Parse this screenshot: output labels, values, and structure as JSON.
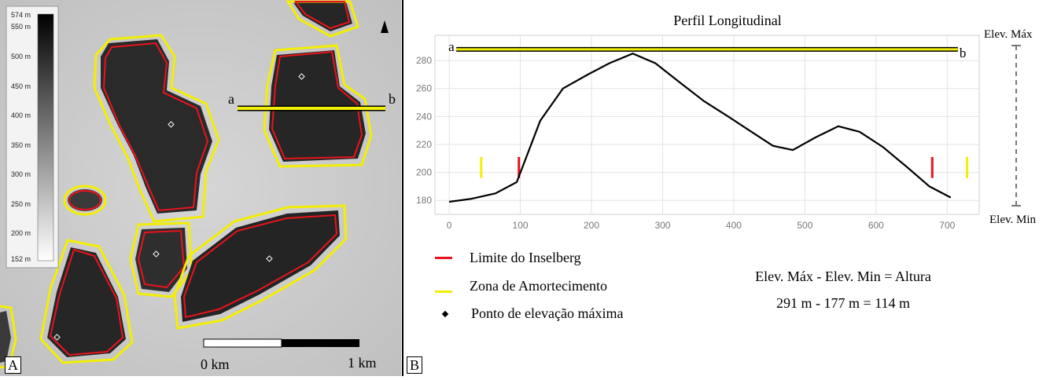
{
  "panel_a": {
    "letter": "A",
    "colorbar": {
      "labels": [
        "574 m",
        "550 m",
        "500 m",
        "450 m",
        "400 m",
        "350 m",
        "300 m",
        "250 m",
        "200 m",
        "152 m"
      ]
    },
    "scale": {
      "start_label": "0 km",
      "end_label": "1 km"
    },
    "transect": {
      "start": "a",
      "end": "b"
    },
    "colors": {
      "inselberg_limit": "#e8141c",
      "buffer_zone": "#f2ee05"
    }
  },
  "panel_b": {
    "letter": "B",
    "title": "Perfil Longitudinal",
    "chart_data": {
      "type": "line",
      "title": "Perfil Longitudinal",
      "xlabel": "",
      "ylabel": "",
      "xlim": [
        -20,
        745
      ],
      "ylim": [
        170,
        298
      ],
      "xticks": [
        0,
        100,
        200,
        300,
        400,
        500,
        600,
        700
      ],
      "yticks": [
        180,
        200,
        220,
        240,
        260,
        280
      ],
      "grid": true,
      "series": [
        {
          "x": [
            0,
            30,
            65,
            95,
            128,
            160,
            195,
            225,
            258,
            290,
            325,
            358,
            392,
            425,
            455,
            483,
            515,
            547,
            577,
            610,
            643,
            675,
            705
          ],
          "y": [
            179,
            181,
            185,
            193,
            237,
            260,
            270,
            278,
            285,
            278,
            264,
            251,
            240,
            229,
            219,
            216,
            225,
            233,
            229,
            218,
            204,
            190,
            182
          ],
          "color": "#000000"
        }
      ],
      "markers": {
        "buffer_zone": {
          "x": [
            45,
            728
          ],
          "y_range": [
            196,
            211
          ],
          "color": "#f2ee05"
        },
        "inselberg_limit": {
          "x": [
            98,
            679
          ],
          "y_range": [
            196,
            211
          ],
          "color": "#e8141c"
        }
      },
      "transect_line": {
        "x": [
          10,
          715
        ],
        "y": 288,
        "start_label": "a",
        "end_label": "b"
      },
      "elev_max_label": "Elev. Máx",
      "elev_min_label": "Elev. Min"
    },
    "legend": [
      {
        "label": "Limite do Inselberg",
        "color": "#e8141c",
        "kind": "line"
      },
      {
        "label": "Zona de Amortecimento",
        "color": "#f2ee05",
        "kind": "line"
      },
      {
        "label": "Ponto de elevação máxima",
        "color": "#000000",
        "kind": "dot"
      }
    ],
    "formula": {
      "line1": "Elev. Máx - Elev. Min = Altura",
      "line2": "291 m - 177 m = 114 m"
    }
  }
}
